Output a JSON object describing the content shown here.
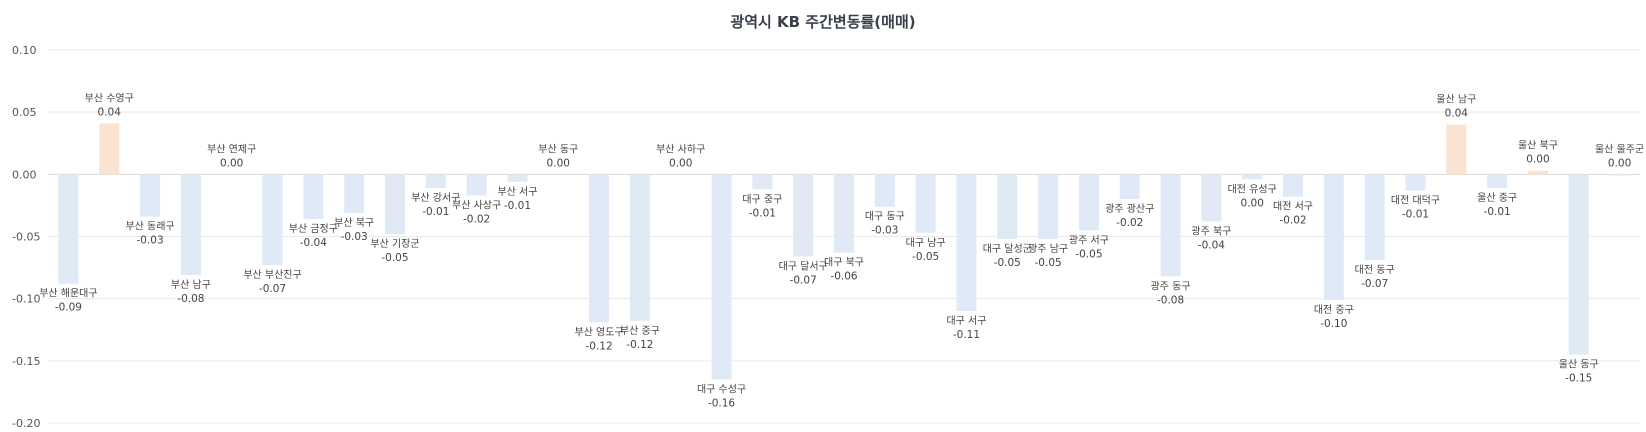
{
  "chart_data": {
    "type": "bar",
    "title": "광역시 KB 주간변동률(매매)",
    "ylim": [
      -0.2,
      0.1
    ],
    "yticks": [
      "0.10",
      "0.05",
      "0.00",
      "-0.05",
      "-0.10",
      "-0.15",
      "-0.20"
    ],
    "grid": true,
    "legend": "none",
    "colors": {
      "negative": "#dfeaf6",
      "positive": "#fbe3d1"
    },
    "categories": [
      "부산 해운대구",
      "부산 수영구",
      "부산 동래구",
      "부산 남구",
      "부산 연제구",
      "부산 부산진구",
      "부산 금정구",
      "부산 북구",
      "부산 기장군",
      "부산 강서구",
      "부산 사상구",
      "부산 서구",
      "부산 동구",
      "부산 영도구",
      "부산 중구",
      "부산 사하구",
      "대구 수성구",
      "대구 중구",
      "대구 달서구",
      "대구 북구",
      "대구 동구",
      "대구 남구",
      "대구 서구",
      "대구 달성군",
      "광주 남구",
      "광주 서구",
      "광주 광산구",
      "광주 동구",
      "광주 북구",
      "대전 유성구",
      "대전 서구",
      "대전 중구",
      "대전 동구",
      "대전 대덕구",
      "울산 남구",
      "울산 중구",
      "울산 북구",
      "울산 동구",
      "울산 울주군"
    ],
    "values": [
      -0.088,
      0.041,
      -0.034,
      -0.081,
      0.0,
      -0.073,
      -0.036,
      -0.031,
      -0.048,
      -0.011,
      -0.017,
      -0.006,
      0.0,
      -0.119,
      -0.118,
      0.0,
      -0.165,
      -0.012,
      -0.066,
      -0.063,
      -0.026,
      -0.047,
      -0.11,
      -0.052,
      -0.052,
      -0.045,
      -0.02,
      -0.082,
      -0.038,
      -0.004,
      -0.018,
      -0.101,
      -0.069,
      -0.013,
      0.04,
      -0.011,
      0.003,
      -0.145,
      -0.001
    ],
    "labels": [
      "-0.09",
      "0.04",
      "-0.03",
      "-0.08",
      "0.00",
      "-0.07",
      "-0.04",
      "-0.03",
      "-0.05",
      "-0.01",
      "-0.02",
      "-0.01",
      "0.00",
      "-0.12",
      "-0.12",
      "0.00",
      "-0.16",
      "-0.01",
      "-0.07",
      "-0.06",
      "-0.03",
      "-0.05",
      "-0.11",
      "-0.05",
      "-0.05",
      "-0.05",
      "-0.02",
      "-0.08",
      "-0.04",
      "0.00",
      "-0.02",
      "-0.10",
      "-0.07",
      "-0.01",
      "0.04",
      "-0.01",
      "0.00",
      "-0.15",
      "0.00"
    ]
  }
}
